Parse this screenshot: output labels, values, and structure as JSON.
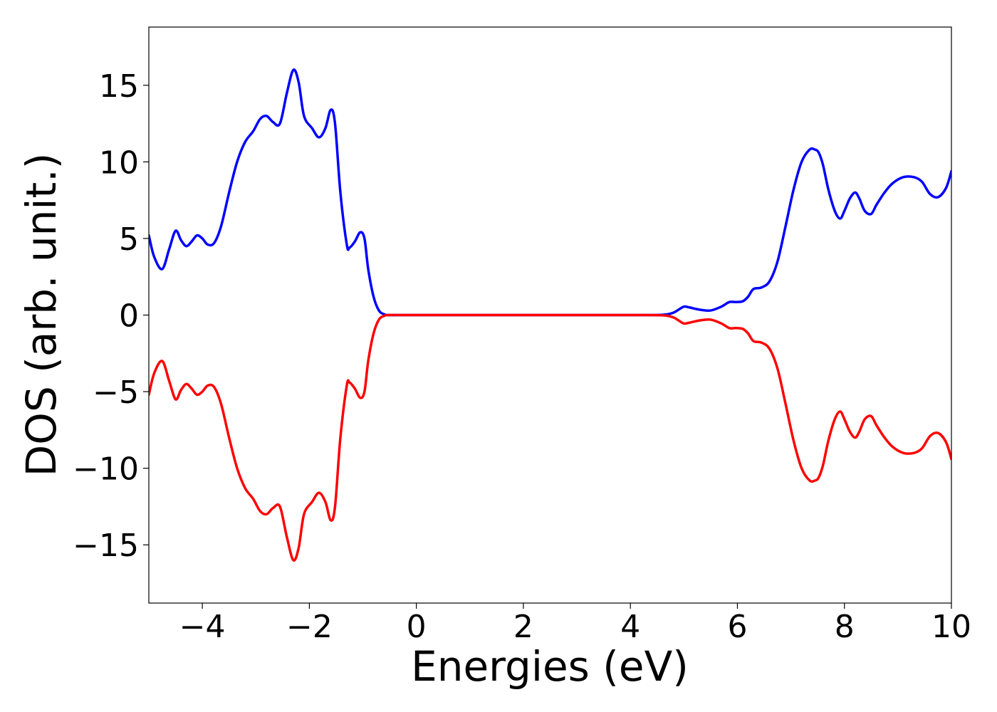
{
  "chart_data": {
    "type": "line",
    "title": "",
    "xlabel": "Energies (eV)",
    "ylabel": "DOS (arb. unit.)",
    "xlim": [
      -5,
      10
    ],
    "ylim": [
      -18.8,
      18.8
    ],
    "xticks": [
      -4,
      -2,
      0,
      2,
      4,
      6,
      8,
      10
    ],
    "yticks": [
      -15,
      -10,
      -5,
      0,
      5,
      10,
      15
    ],
    "xtick_labels": [
      "−4",
      "−2",
      "0",
      "2",
      "4",
      "6",
      "8",
      "10"
    ],
    "ytick_labels": [
      "−15",
      "−10",
      "−5",
      "0",
      "5",
      "10",
      "15"
    ],
    "grid": false,
    "legend": "none",
    "series": [
      {
        "color": "#0000ff",
        "x": [
          -5.0,
          -4.9,
          -4.75,
          -4.62,
          -4.5,
          -4.4,
          -4.3,
          -4.2,
          -4.1,
          -4.0,
          -3.9,
          -3.78,
          -3.65,
          -3.5,
          -3.35,
          -3.2,
          -3.05,
          -2.92,
          -2.8,
          -2.68,
          -2.55,
          -2.42,
          -2.3,
          -2.2,
          -2.1,
          -1.95,
          -1.82,
          -1.7,
          -1.6,
          -1.52,
          -1.42,
          -1.3,
          -1.25,
          -1.15,
          -1.05,
          -0.97,
          -0.9,
          -0.8,
          -0.7,
          -0.6,
          -0.5,
          0.0,
          2.0,
          4.0,
          4.6,
          4.8,
          4.9,
          5.0,
          5.1,
          5.3,
          5.5,
          5.7,
          5.85,
          5.97,
          6.1,
          6.2,
          6.3,
          6.45,
          6.6,
          6.75,
          6.9,
          7.05,
          7.2,
          7.35,
          7.45,
          7.52,
          7.6,
          7.7,
          7.82,
          7.92,
          8.0,
          8.1,
          8.2,
          8.28,
          8.38,
          8.5,
          8.6,
          8.75,
          8.9,
          9.1,
          9.3,
          9.45,
          9.6,
          9.75,
          9.9,
          10.0
        ],
        "y": [
          5.2,
          3.8,
          3.0,
          4.3,
          5.5,
          4.9,
          4.5,
          4.8,
          5.2,
          5.0,
          4.6,
          4.7,
          5.8,
          8.0,
          10.0,
          11.3,
          12.0,
          12.8,
          13.0,
          12.6,
          12.5,
          14.5,
          16.0,
          15.2,
          13.0,
          12.2,
          11.6,
          12.2,
          13.4,
          12.5,
          8.0,
          4.6,
          4.4,
          4.8,
          5.4,
          5.0,
          3.0,
          1.2,
          0.3,
          0.05,
          0.0,
          0.0,
          0.0,
          0.0,
          0.02,
          0.15,
          0.35,
          0.55,
          0.5,
          0.35,
          0.3,
          0.55,
          0.85,
          0.85,
          0.9,
          1.2,
          1.7,
          1.8,
          2.2,
          3.5,
          5.8,
          8.2,
          10.0,
          10.8,
          10.8,
          10.6,
          9.8,
          8.2,
          6.8,
          6.3,
          6.8,
          7.6,
          8.0,
          7.6,
          6.8,
          6.6,
          7.2,
          8.0,
          8.6,
          9.0,
          9.0,
          8.7,
          7.9,
          7.7,
          8.3,
          9.4
        ]
      },
      {
        "color": "#ff0000",
        "x": [
          -5.0,
          -4.9,
          -4.75,
          -4.62,
          -4.5,
          -4.4,
          -4.3,
          -4.2,
          -4.1,
          -4.0,
          -3.9,
          -3.78,
          -3.65,
          -3.5,
          -3.35,
          -3.2,
          -3.05,
          -2.92,
          -2.8,
          -2.68,
          -2.55,
          -2.42,
          -2.3,
          -2.2,
          -2.1,
          -1.95,
          -1.82,
          -1.7,
          -1.6,
          -1.52,
          -1.42,
          -1.3,
          -1.25,
          -1.15,
          -1.05,
          -0.97,
          -0.9,
          -0.8,
          -0.7,
          -0.6,
          -0.5,
          0.0,
          2.0,
          4.0,
          4.6,
          4.8,
          4.9,
          5.0,
          5.1,
          5.3,
          5.5,
          5.7,
          5.85,
          5.97,
          6.1,
          6.2,
          6.3,
          6.45,
          6.6,
          6.75,
          6.9,
          7.05,
          7.2,
          7.35,
          7.45,
          7.52,
          7.6,
          7.7,
          7.82,
          7.92,
          8.0,
          8.1,
          8.2,
          8.28,
          8.38,
          8.5,
          8.6,
          8.75,
          8.9,
          9.1,
          9.3,
          9.45,
          9.6,
          9.75,
          9.9,
          10.0
        ],
        "y": [
          -5.2,
          -3.8,
          -3.0,
          -4.3,
          -5.5,
          -4.9,
          -4.5,
          -4.8,
          -5.2,
          -5.0,
          -4.6,
          -4.7,
          -5.8,
          -8.0,
          -10.0,
          -11.3,
          -12.0,
          -12.8,
          -13.0,
          -12.6,
          -12.5,
          -14.5,
          -16.0,
          -15.2,
          -13.0,
          -12.2,
          -11.6,
          -12.2,
          -13.4,
          -12.5,
          -8.0,
          -4.6,
          -4.4,
          -4.8,
          -5.4,
          -5.0,
          -3.0,
          -1.2,
          -0.3,
          -0.05,
          0.0,
          0.0,
          0.0,
          0.0,
          -0.02,
          -0.15,
          -0.35,
          -0.55,
          -0.5,
          -0.35,
          -0.3,
          -0.55,
          -0.85,
          -0.85,
          -0.9,
          -1.2,
          -1.7,
          -1.8,
          -2.2,
          -3.5,
          -5.8,
          -8.2,
          -10.0,
          -10.8,
          -10.8,
          -10.6,
          -9.8,
          -8.2,
          -6.8,
          -6.3,
          -6.8,
          -7.6,
          -8.0,
          -7.6,
          -6.8,
          -6.6,
          -7.2,
          -8.0,
          -8.6,
          -9.0,
          -9.0,
          -8.7,
          -7.9,
          -7.7,
          -8.3,
          -9.4
        ]
      }
    ]
  }
}
